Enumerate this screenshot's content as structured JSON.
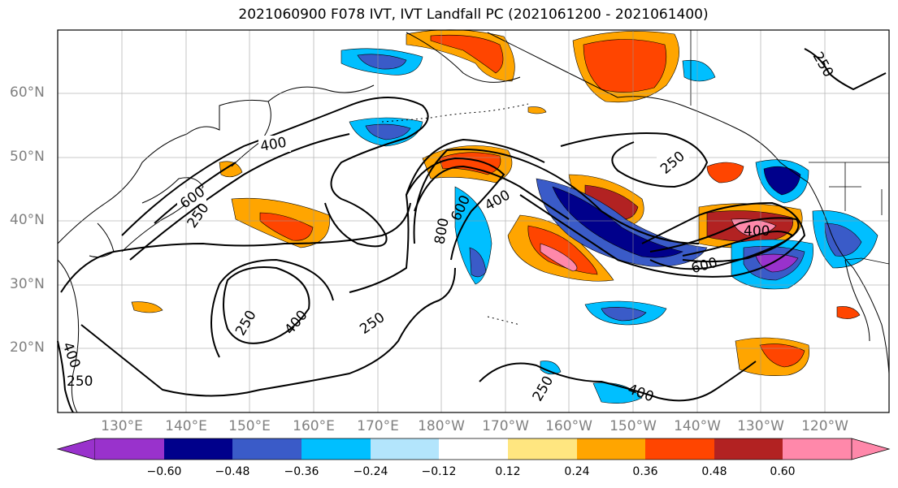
{
  "title": "2021060900 F078 IVT, IVT Landfall PC (2021061200 - 2021061400)",
  "lat_labels": [
    "60°N",
    "50°N",
    "40°N",
    "30°N",
    "20°N"
  ],
  "lon_labels": [
    "130°E",
    "140°E",
    "150°E",
    "160°E",
    "170°E",
    "180°W",
    "170°W",
    "160°W",
    "150°W",
    "140°W",
    "130°W",
    "120°W"
  ],
  "contour_labels": [
    "400",
    "600",
    "250",
    "250",
    "400",
    "250",
    "400",
    "250",
    "800",
    "600",
    "400",
    "250",
    "400",
    "600",
    "250",
    "400",
    "250",
    "400",
    "250"
  ],
  "colorbar": {
    "ticks": [
      "−0.60",
      "−0.48",
      "−0.36",
      "−0.24",
      "−0.12",
      "0.12",
      "0.24",
      "0.36",
      "0.48",
      "0.60"
    ],
    "colors": [
      "#9932cc",
      "#00008b",
      "#3a5bc8",
      "#00bfff",
      "#b3e5fc",
      "#ffffff",
      "#ffe680",
      "#ffa500",
      "#ff4500",
      "#b22222",
      "#ff88aa",
      "#ff88aa"
    ]
  },
  "map_colors": {
    "pos_outer": "#ffe680",
    "pos_mid": "#ffa500",
    "pos_high": "#ff4500",
    "pos_max": "#b22222",
    "pos_peak": "#ff88aa",
    "neg_outer": "#b3e5fc",
    "neg_mid": "#00bfff",
    "neg_high": "#3a5bc8",
    "neg_max": "#00008b",
    "neg_peak": "#9932cc"
  }
}
